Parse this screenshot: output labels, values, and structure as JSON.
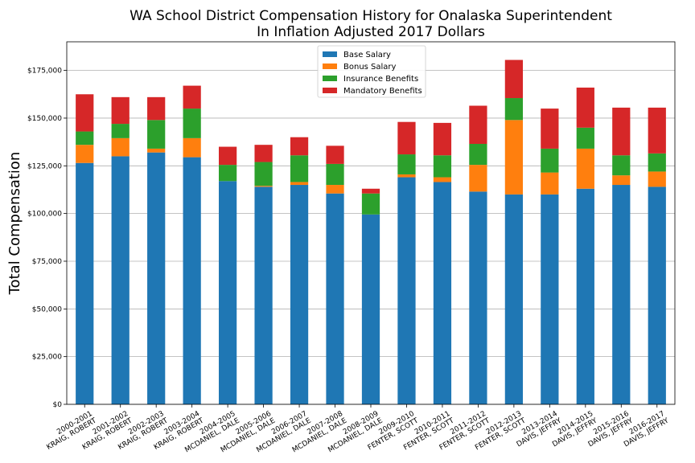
{
  "chart_data": {
    "type": "bar",
    "stacked": true,
    "title": [
      "WA School District Compensation History for Onalaska Superintendent",
      "In Inflation Adjusted 2017 Dollars"
    ],
    "ylabel": "Total Compensation",
    "xlabel": "",
    "ylim": [
      0,
      190000
    ],
    "yticks": [
      0,
      25000,
      50000,
      75000,
      100000,
      125000,
      150000,
      175000
    ],
    "ytick_labels": [
      "$0",
      "$25,000",
      "$50,000",
      "$75,000",
      "$100,000",
      "$125,000",
      "$150,000",
      "$175,000"
    ],
    "grid": true,
    "legend_position": "top-center",
    "categories": [
      [
        "2000-2001",
        "KRAIG, ROBERT"
      ],
      [
        "2001-2002",
        "KRAIG, ROBERT"
      ],
      [
        "2002-2003",
        "KRAIG, ROBERT"
      ],
      [
        "2003-2004",
        "KRAIG, ROBERT"
      ],
      [
        "2004-2005",
        "MCDANIEL, DALE"
      ],
      [
        "2005-2006",
        "MCDANIEL, DALE"
      ],
      [
        "2006-2007",
        "MCDANIEL, DALE"
      ],
      [
        "2007-2008",
        "MCDANIEL, DALE"
      ],
      [
        "2008-2009",
        "MCDANIEL, DALE"
      ],
      [
        "2009-2010",
        "FENTER, SCOTT"
      ],
      [
        "2010-2011",
        "FENTER, SCOTT"
      ],
      [
        "2011-2012",
        "FENTER, SCOTT"
      ],
      [
        "2012-2013",
        "FENTER, SCOTT"
      ],
      [
        "2013-2014",
        "DAVIS, JEFFRY"
      ],
      [
        "2014-2015",
        "DAVIS, JEFFRY"
      ],
      [
        "2015-2016",
        "DAVIS, JEFFRY"
      ],
      [
        "2016-2017",
        "DAVIS, JEFFRY"
      ]
    ],
    "series": [
      {
        "name": "Base Salary",
        "color": "#1f77b4",
        "values": [
          126500,
          130000,
          132000,
          129500,
          117000,
          114000,
          115000,
          110500,
          99500,
          119000,
          116500,
          111500,
          110000,
          110000,
          113000,
          115000,
          114000
        ]
      },
      {
        "name": "Bonus Salary",
        "color": "#ff7f0e",
        "values": [
          9500,
          9500,
          2000,
          10000,
          0,
          500,
          1500,
          4500,
          0,
          1500,
          2500,
          14000,
          39000,
          11500,
          21000,
          5000,
          8000
        ]
      },
      {
        "name": "Insurance Benefits",
        "color": "#2ca02c",
        "values": [
          7000,
          7500,
          15000,
          15500,
          8500,
          12500,
          14000,
          11000,
          11000,
          10500,
          11500,
          11000,
          11500,
          12500,
          11000,
          10500,
          9500
        ]
      },
      {
        "name": "Mandatory Benefits",
        "color": "#d62728",
        "values": [
          19500,
          14000,
          12000,
          12000,
          9500,
          9000,
          9500,
          9500,
          2500,
          17000,
          17000,
          20000,
          20000,
          21000,
          21000,
          25000,
          24000
        ]
      }
    ]
  }
}
